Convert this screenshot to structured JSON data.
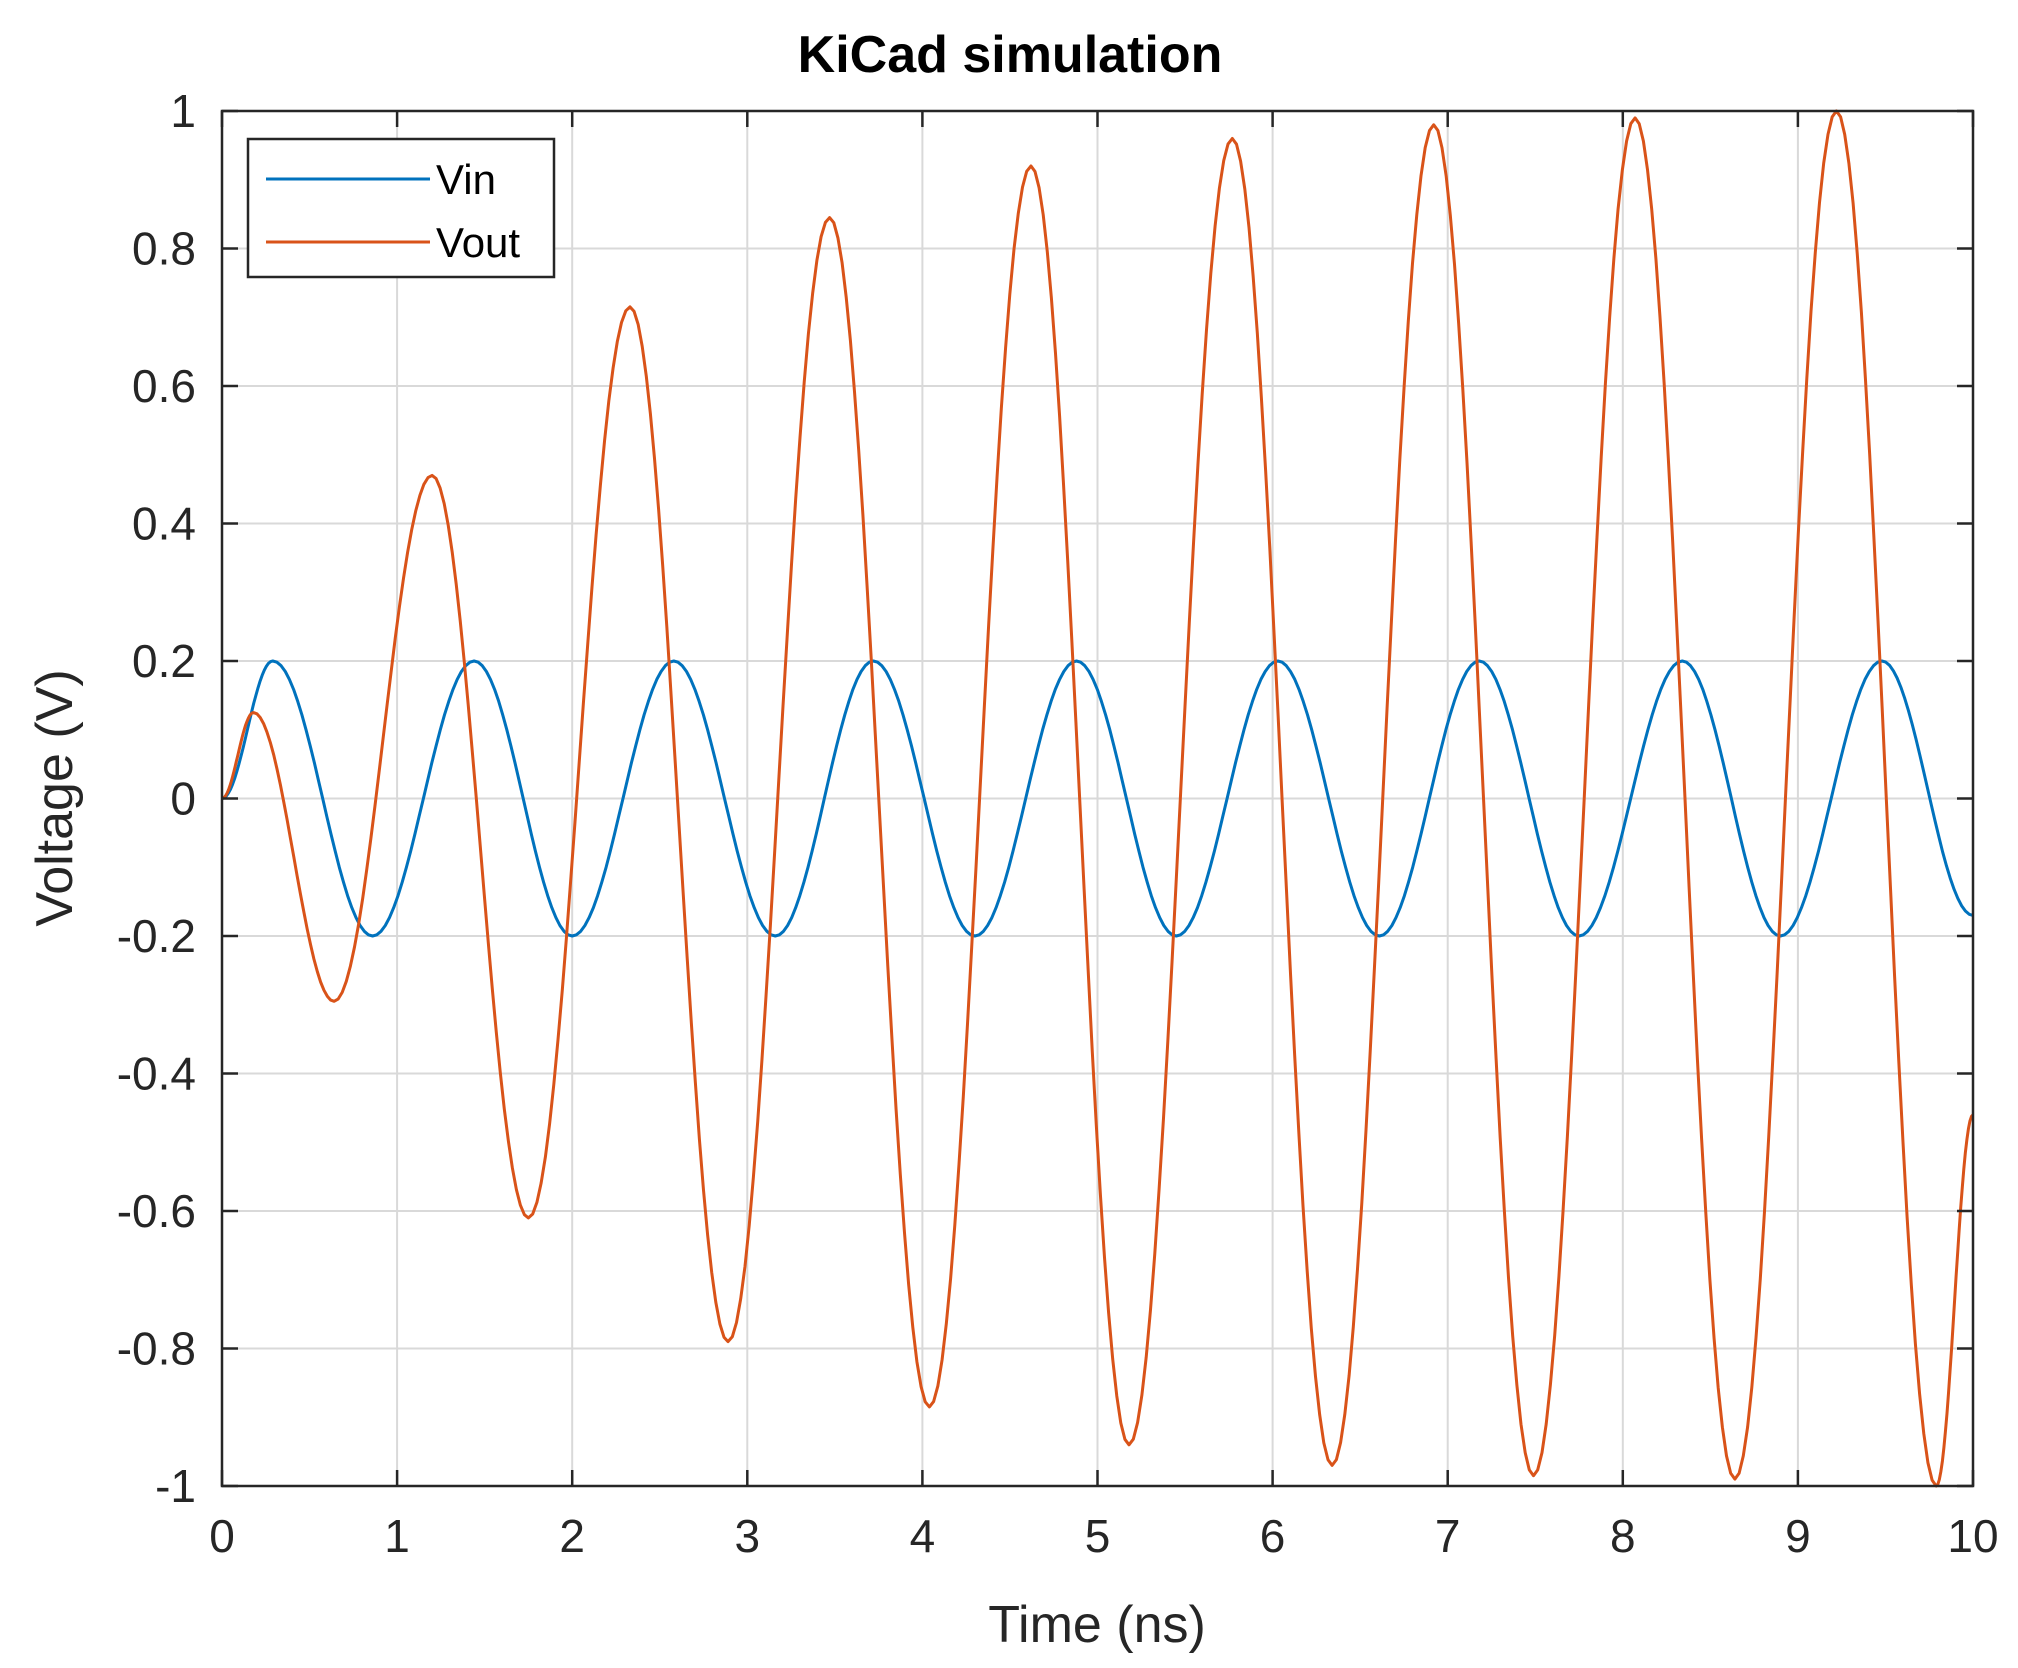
{
  "chart_data": {
    "type": "line",
    "title": "KiCad simulation",
    "xlabel": "Time (ns)",
    "ylabel": "Voltage (V)",
    "xlim": [
      0,
      10
    ],
    "ylim": [
      -1,
      1
    ],
    "x_ticks": [
      0,
      1,
      2,
      3,
      4,
      5,
      6,
      7,
      8,
      9,
      10
    ],
    "x_tick_labels": [
      "0",
      "1",
      "2",
      "3",
      "4",
      "5",
      "6",
      "7",
      "8",
      "9",
      "10"
    ],
    "y_ticks": [
      -1,
      -0.8,
      -0.6,
      -0.4,
      -0.2,
      0,
      0.2,
      0.4,
      0.6,
      0.8,
      1
    ],
    "y_tick_labels": [
      "-1",
      "-0.8",
      "-0.6",
      "-0.4",
      "-0.2",
      "0",
      "0.2",
      "0.4",
      "0.6",
      "0.8",
      "1"
    ],
    "grid": true,
    "legend_position": "top-left",
    "series": [
      {
        "name": "Vin",
        "color": "#0072BD",
        "x": [
          0,
          0.29,
          0.86,
          1.44,
          2.0,
          2.58,
          3.16,
          3.72,
          4.3,
          4.88,
          5.45,
          6.03,
          6.61,
          7.18,
          7.75,
          8.34,
          8.9,
          9.48,
          10
        ],
        "y": [
          0,
          0.2,
          -0.2,
          0.2,
          -0.2,
          0.2,
          -0.2,
          0.2,
          -0.2,
          0.2,
          -0.2,
          0.2,
          -0.2,
          0.2,
          -0.2,
          0.2,
          -0.2,
          0.2,
          -0.17
        ]
      },
      {
        "name": "Vout",
        "color": "#D95319",
        "x": [
          0,
          0.18,
          0.64,
          1.2,
          1.75,
          2.33,
          2.89,
          3.47,
          4.04,
          4.62,
          5.18,
          5.77,
          6.34,
          6.92,
          7.49,
          8.07,
          8.64,
          9.22,
          9.79,
          10
        ],
        "y": [
          0,
          0.125,
          -0.295,
          0.47,
          -0.61,
          0.715,
          -0.79,
          0.845,
          -0.885,
          0.92,
          -0.94,
          0.96,
          -0.97,
          0.98,
          -0.985,
          0.99,
          -0.99,
          1.0,
          -1.0,
          -0.46
        ]
      }
    ]
  }
}
